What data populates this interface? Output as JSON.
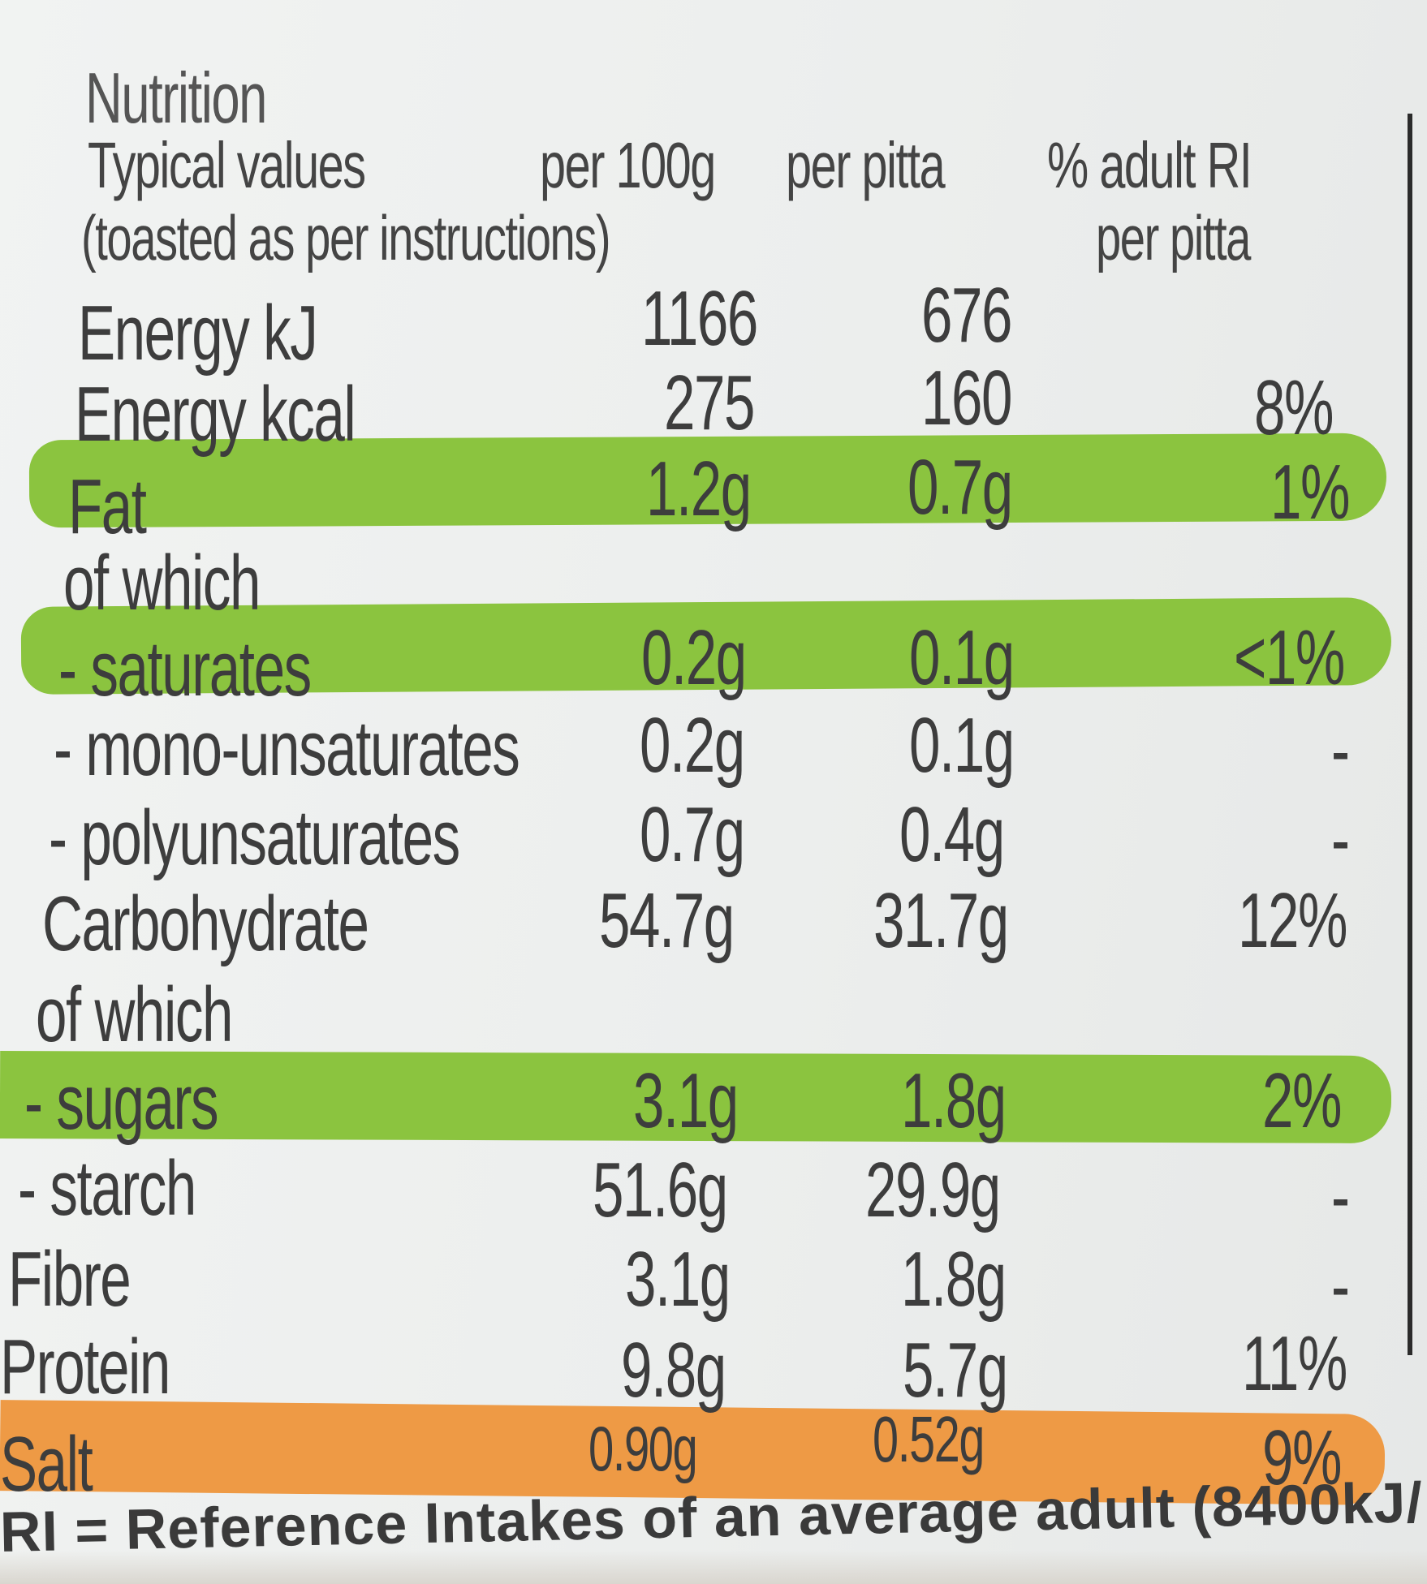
{
  "panel": {
    "title": "Nutrition",
    "headers": {
      "typical": "Typical values",
      "per100": "per 100g",
      "perpitta": "per pitta",
      "ri": "% adult RI",
      "note": "(toasted as per instructions)",
      "ri2": "per pitta"
    },
    "rows": [
      {
        "label": "Energy kJ",
        "per100": "1166",
        "perpitta": "676",
        "ri": ""
      },
      {
        "label": "Energy kcal",
        "per100": "275",
        "perpitta": "160",
        "ri": "8%"
      },
      {
        "label": "Fat",
        "per100": "1.2g",
        "perpitta": "0.7g",
        "ri": "1%",
        "highlight": "green"
      },
      {
        "label": "of which",
        "per100": "",
        "perpitta": "",
        "ri": ""
      },
      {
        "label": "- saturates",
        "per100": "0.2g",
        "perpitta": "0.1g",
        "ri": "<1%",
        "highlight": "green"
      },
      {
        "label": "- mono-unsaturates",
        "per100": "0.2g",
        "perpitta": "0.1g",
        "ri": "-"
      },
      {
        "label": "- polyunsaturates",
        "per100": "0.7g",
        "perpitta": "0.4g",
        "ri": "-"
      },
      {
        "label": "Carbohydrate",
        "per100": "54.7g",
        "perpitta": "31.7g",
        "ri": "12%"
      },
      {
        "label": "of which",
        "per100": "",
        "perpitta": "",
        "ri": ""
      },
      {
        "label": "- sugars",
        "per100": "3.1g",
        "perpitta": "1.8g",
        "ri": "2%",
        "highlight": "green"
      },
      {
        "label": "- starch",
        "per100": "51.6g",
        "perpitta": "29.9g",
        "ri": "-"
      },
      {
        "label": "Fibre",
        "per100": "3.1g",
        "perpitta": "1.8g",
        "ri": "-"
      },
      {
        "label": "Protein",
        "per100": "9.8g",
        "perpitta": "5.7g",
        "ri": "11%"
      },
      {
        "label": "Salt",
        "per100": "0.90g",
        "perpitta": "0.52g",
        "ri": "9%",
        "highlight": "amber"
      }
    ],
    "footer": "RI = Reference Intakes of an average adult (8400kJ/"
  },
  "colors": {
    "green": "#8bc43f",
    "amber": "#ee9a45",
    "text": "#3d3d3d",
    "background": "#eef0ef"
  }
}
